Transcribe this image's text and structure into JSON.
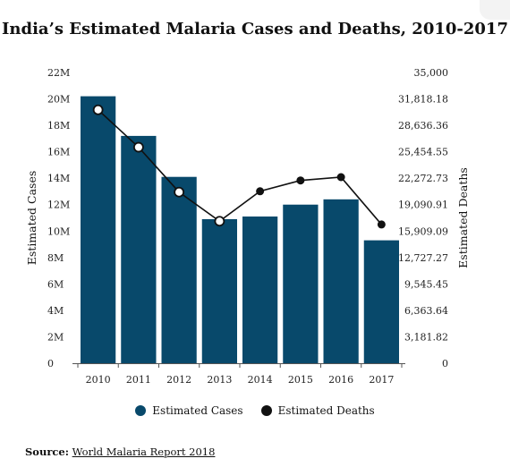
{
  "title": "India’s Estimated Malaria Cases and Deaths, 2010-2017",
  "legend": {
    "cases_label": "Estimated Cases",
    "deaths_label": "Estimated Deaths"
  },
  "source": {
    "label": "Source:",
    "link_text": "World Malaria Report 2018"
  },
  "colors": {
    "bar": "#08496b",
    "line": "#111111",
    "marker_fill_highlight": "#ffffff",
    "marker_fill": "#111111"
  },
  "chart_data": {
    "type": "bar",
    "categories": [
      "2010",
      "2011",
      "2012",
      "2013",
      "2014",
      "2015",
      "2016",
      "2017"
    ],
    "series": [
      {
        "name": "Estimated Cases",
        "type": "bar",
        "axis": "left",
        "values": [
          20200000,
          17200000,
          14100000,
          10900000,
          11100000,
          12000000,
          12400000,
          9300000
        ]
      },
      {
        "name": "Estimated Deaths",
        "type": "line",
        "axis": "right",
        "values": [
          30500,
          26000,
          20600,
          17100,
          20700,
          22000,
          22400,
          16700
        ],
        "hollow_markers": [
          true,
          true,
          true,
          true,
          false,
          false,
          false,
          false
        ]
      }
    ],
    "ylabel": "Estimated Cases",
    "y2label": "Estimated Deaths",
    "ylim": [
      0,
      22000000
    ],
    "y2lim": [
      0,
      35000
    ],
    "yticks": [
      "0",
      "2M",
      "4M",
      "6M",
      "8M",
      "10M",
      "12M",
      "14M",
      "16M",
      "18M",
      "20M",
      "22M"
    ],
    "y2ticks": [
      "0",
      "3,181.82",
      "6,363.64",
      "9,545.45",
      "12,727.27",
      "15,909.09",
      "19,090.91",
      "22,272.73",
      "25,454.55",
      "28,636.36",
      "31,818.18",
      "35,000"
    ],
    "grid": false,
    "legend_position": "bottom"
  }
}
